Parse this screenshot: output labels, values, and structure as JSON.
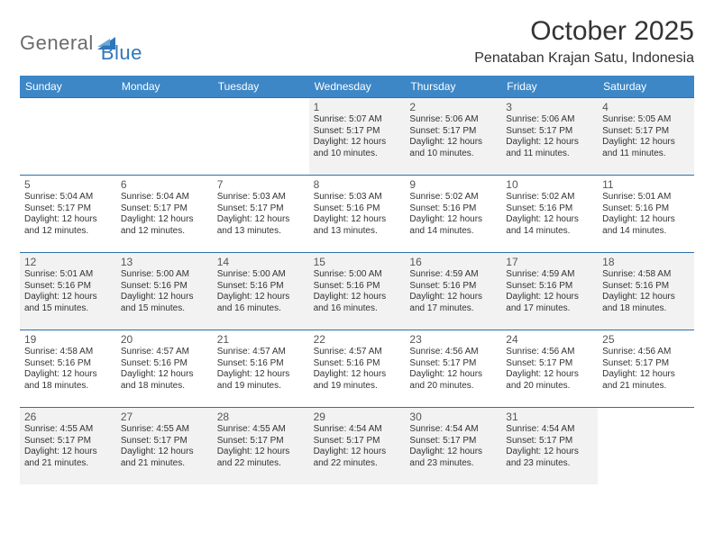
{
  "logo": {
    "text1": "General",
    "text2": "Blue"
  },
  "title": "October 2025",
  "location": "Penataban Krajan Satu, Indonesia",
  "colors": {
    "header_bg": "#3d87c7",
    "header_text": "#ffffff",
    "rule": "#2f6fa8",
    "shaded": "#f2f2f2",
    "logo_gray": "#6b6b6b",
    "logo_blue": "#2f77bb"
  },
  "day_headers": [
    "Sunday",
    "Monday",
    "Tuesday",
    "Wednesday",
    "Thursday",
    "Friday",
    "Saturday"
  ],
  "weeks": [
    [
      {
        "empty": true
      },
      {
        "empty": true
      },
      {
        "empty": true
      },
      {
        "n": "1",
        "sunrise": "5:07 AM",
        "sunset": "5:17 PM",
        "day_h": "12",
        "day_m": "10"
      },
      {
        "n": "2",
        "sunrise": "5:06 AM",
        "sunset": "5:17 PM",
        "day_h": "12",
        "day_m": "10"
      },
      {
        "n": "3",
        "sunrise": "5:06 AM",
        "sunset": "5:17 PM",
        "day_h": "12",
        "day_m": "11"
      },
      {
        "n": "4",
        "sunrise": "5:05 AM",
        "sunset": "5:17 PM",
        "day_h": "12",
        "day_m": "11"
      }
    ],
    [
      {
        "n": "5",
        "sunrise": "5:04 AM",
        "sunset": "5:17 PM",
        "day_h": "12",
        "day_m": "12"
      },
      {
        "n": "6",
        "sunrise": "5:04 AM",
        "sunset": "5:17 PM",
        "day_h": "12",
        "day_m": "12"
      },
      {
        "n": "7",
        "sunrise": "5:03 AM",
        "sunset": "5:17 PM",
        "day_h": "12",
        "day_m": "13"
      },
      {
        "n": "8",
        "sunrise": "5:03 AM",
        "sunset": "5:16 PM",
        "day_h": "12",
        "day_m": "13"
      },
      {
        "n": "9",
        "sunrise": "5:02 AM",
        "sunset": "5:16 PM",
        "day_h": "12",
        "day_m": "14"
      },
      {
        "n": "10",
        "sunrise": "5:02 AM",
        "sunset": "5:16 PM",
        "day_h": "12",
        "day_m": "14"
      },
      {
        "n": "11",
        "sunrise": "5:01 AM",
        "sunset": "5:16 PM",
        "day_h": "12",
        "day_m": "14"
      }
    ],
    [
      {
        "n": "12",
        "sunrise": "5:01 AM",
        "sunset": "5:16 PM",
        "day_h": "12",
        "day_m": "15"
      },
      {
        "n": "13",
        "sunrise": "5:00 AM",
        "sunset": "5:16 PM",
        "day_h": "12",
        "day_m": "15"
      },
      {
        "n": "14",
        "sunrise": "5:00 AM",
        "sunset": "5:16 PM",
        "day_h": "12",
        "day_m": "16"
      },
      {
        "n": "15",
        "sunrise": "5:00 AM",
        "sunset": "5:16 PM",
        "day_h": "12",
        "day_m": "16"
      },
      {
        "n": "16",
        "sunrise": "4:59 AM",
        "sunset": "5:16 PM",
        "day_h": "12",
        "day_m": "17"
      },
      {
        "n": "17",
        "sunrise": "4:59 AM",
        "sunset": "5:16 PM",
        "day_h": "12",
        "day_m": "17"
      },
      {
        "n": "18",
        "sunrise": "4:58 AM",
        "sunset": "5:16 PM",
        "day_h": "12",
        "day_m": "18"
      }
    ],
    [
      {
        "n": "19",
        "sunrise": "4:58 AM",
        "sunset": "5:16 PM",
        "day_h": "12",
        "day_m": "18"
      },
      {
        "n": "20",
        "sunrise": "4:57 AM",
        "sunset": "5:16 PM",
        "day_h": "12",
        "day_m": "18"
      },
      {
        "n": "21",
        "sunrise": "4:57 AM",
        "sunset": "5:16 PM",
        "day_h": "12",
        "day_m": "19"
      },
      {
        "n": "22",
        "sunrise": "4:57 AM",
        "sunset": "5:16 PM",
        "day_h": "12",
        "day_m": "19"
      },
      {
        "n": "23",
        "sunrise": "4:56 AM",
        "sunset": "5:17 PM",
        "day_h": "12",
        "day_m": "20"
      },
      {
        "n": "24",
        "sunrise": "4:56 AM",
        "sunset": "5:17 PM",
        "day_h": "12",
        "day_m": "20"
      },
      {
        "n": "25",
        "sunrise": "4:56 AM",
        "sunset": "5:17 PM",
        "day_h": "12",
        "day_m": "21"
      }
    ],
    [
      {
        "n": "26",
        "sunrise": "4:55 AM",
        "sunset": "5:17 PM",
        "day_h": "12",
        "day_m": "21"
      },
      {
        "n": "27",
        "sunrise": "4:55 AM",
        "sunset": "5:17 PM",
        "day_h": "12",
        "day_m": "21"
      },
      {
        "n": "28",
        "sunrise": "4:55 AM",
        "sunset": "5:17 PM",
        "day_h": "12",
        "day_m": "22"
      },
      {
        "n": "29",
        "sunrise": "4:54 AM",
        "sunset": "5:17 PM",
        "day_h": "12",
        "day_m": "22"
      },
      {
        "n": "30",
        "sunrise": "4:54 AM",
        "sunset": "5:17 PM",
        "day_h": "12",
        "day_m": "23"
      },
      {
        "n": "31",
        "sunrise": "4:54 AM",
        "sunset": "5:17 PM",
        "day_h": "12",
        "day_m": "23"
      },
      {
        "empty": true
      }
    ]
  ],
  "labels": {
    "sunrise": "Sunrise:",
    "sunset": "Sunset:",
    "daylight": "Daylight:",
    "hours_word": "hours",
    "and_word": "and",
    "minutes_word": "minutes."
  }
}
